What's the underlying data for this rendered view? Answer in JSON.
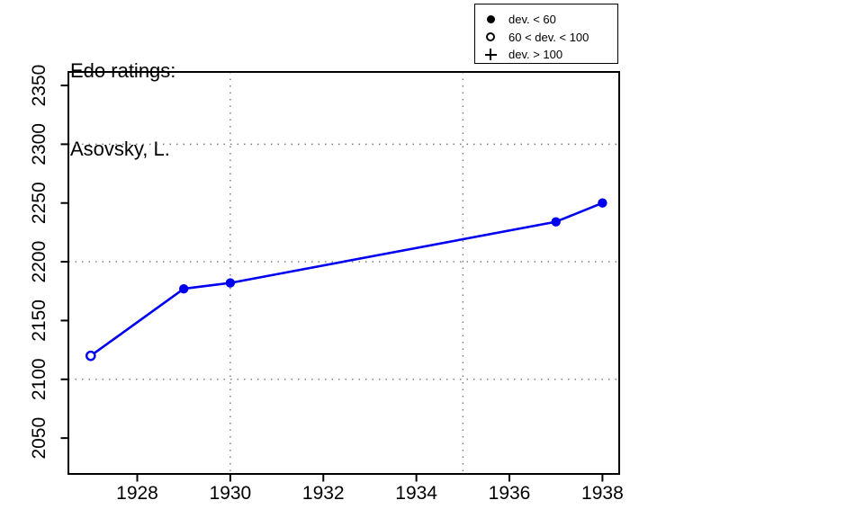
{
  "legend": {
    "entries": [
      {
        "marker": "filled-circle",
        "label": "dev. < 60"
      },
      {
        "marker": "open-circle",
        "label": "60 < dev. < 100"
      },
      {
        "marker": "plus",
        "label": "dev. > 100"
      }
    ]
  },
  "chart_data": {
    "type": "line",
    "title": "Edo ratings:",
    "subtitle": "Asovsky, L.",
    "x": [
      1927,
      1929,
      1930,
      1937,
      1938
    ],
    "series": [
      {
        "name": "Edo rating",
        "values": [
          2120,
          2177,
          2182,
          2234,
          2250
        ],
        "markers": [
          "open",
          "filled",
          "filled",
          "filled",
          "filled"
        ]
      }
    ],
    "x_ticks": [
      1928,
      1930,
      1932,
      1934,
      1936,
      1938
    ],
    "y_ticks": [
      2050,
      2100,
      2150,
      2200,
      2250,
      2300,
      2350
    ],
    "xlim": [
      1926.52,
      1938.36
    ],
    "ylim": [
      2019.5,
      2361.5
    ],
    "grid_x": [
      1930,
      1935
    ],
    "grid_y": [
      2100,
      2200,
      2300
    ],
    "grid_style": "dotted",
    "legend_position": "top-right",
    "colors": {
      "line": "#0000ee",
      "grid": "#777777",
      "axis": "#000000",
      "background": "#ffffff"
    }
  }
}
